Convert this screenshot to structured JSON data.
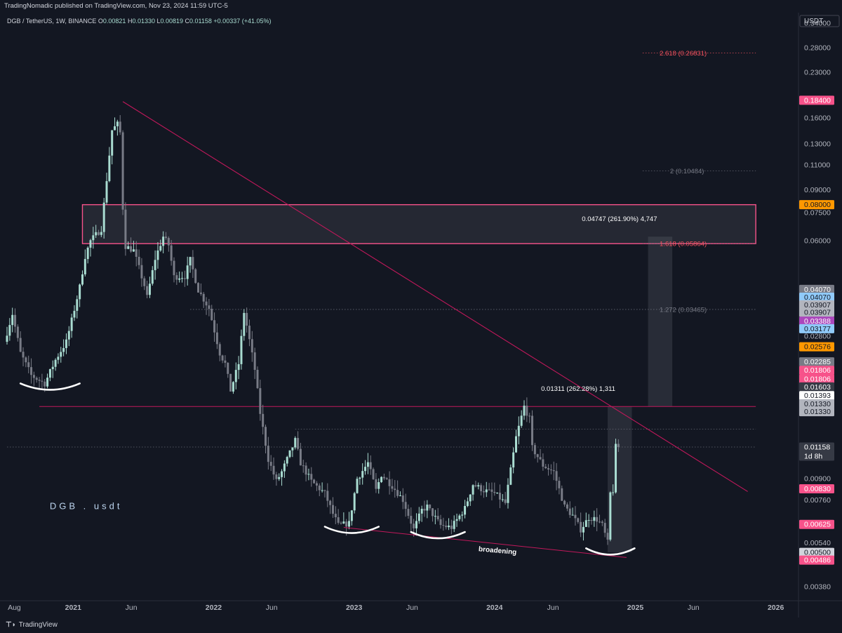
{
  "header": {
    "published": "TradingNomadic published on TradingView.com, Nov 23, 2024 11:59 UTC-5",
    "symbol": "DGB / TetherUS, 1W, BINANCE",
    "ohlc": [
      {
        "k": "O",
        "v": "0.00821"
      },
      {
        "k": "H",
        "v": "0.01330"
      },
      {
        "k": "L",
        "v": "0.00819"
      },
      {
        "k": "C",
        "v": "0.01158"
      }
    ],
    "change": "+0.00337 (+41.05%)",
    "currency": "USDT"
  },
  "footer": {
    "brand": "TradingView"
  },
  "colors": {
    "bg": "#131722",
    "up": "#a9dcd1",
    "down": "#787b86",
    "pink": "#f7525f",
    "trend": "#c2185b",
    "grid": "#2a2e39",
    "axis_text": "#b2b5be"
  },
  "chart_data": {
    "type": "candlestick",
    "title": "DGB . usdt",
    "y_scale": "log",
    "ylim": [
      0.0034,
      0.37
    ],
    "x_range": [
      "2020-07-13",
      "2026-03-01"
    ],
    "y_ticks": [
      "0.34000",
      "0.28000",
      "0.23000",
      "0.16000",
      "0.13000",
      "0.11000",
      "0.09000",
      "0.07500",
      "0.06000",
      "0.02800",
      "0.00900",
      "0.00760",
      "0.00540",
      "0.00380"
    ],
    "x_ticks": [
      {
        "label": "Aug",
        "date": "2020-08-01",
        "major": false
      },
      {
        "label": "2021",
        "date": "2021-01-01",
        "major": true
      },
      {
        "label": "Jun",
        "date": "2021-06-01",
        "major": false
      },
      {
        "label": "2022",
        "date": "2022-01-01",
        "major": true
      },
      {
        "label": "Jun",
        "date": "2022-06-01",
        "major": false
      },
      {
        "label": "2023",
        "date": "2023-01-01",
        "major": true
      },
      {
        "label": "Jun",
        "date": "2023-06-01",
        "major": false
      },
      {
        "label": "2024",
        "date": "2024-01-01",
        "major": true
      },
      {
        "label": "Jun",
        "date": "2024-06-01",
        "major": false
      },
      {
        "label": "2025",
        "date": "2025-01-01",
        "major": true
      },
      {
        "label": "Jun",
        "date": "2025-06-01",
        "major": false
      },
      {
        "label": "2026",
        "date": "2026-01-01",
        "major": true
      }
    ],
    "price_path": [
      [
        "2020-07-13",
        0.0268
      ],
      [
        "2020-08-03",
        0.0335
      ],
      [
        "2020-08-24",
        0.0245
      ],
      [
        "2020-09-21",
        0.0205
      ],
      [
        "2020-10-26",
        0.0192
      ],
      [
        "2020-11-23",
        0.0232
      ],
      [
        "2020-12-21",
        0.0268
      ],
      [
        "2021-01-04",
        0.0318
      ],
      [
        "2021-01-25",
        0.0415
      ],
      [
        "2021-02-08",
        0.053
      ],
      [
        "2021-02-22",
        0.06
      ],
      [
        "2021-03-22",
        0.066
      ],
      [
        "2021-04-19",
        0.145
      ],
      [
        "2021-05-03",
        0.152
      ],
      [
        "2021-05-10",
        0.142
      ],
      [
        "2021-05-17",
        0.078
      ],
      [
        "2021-05-24",
        0.0575
      ],
      [
        "2021-06-14",
        0.0555
      ],
      [
        "2021-07-12",
        0.042
      ],
      [
        "2021-07-19",
        0.0382
      ],
      [
        "2021-08-09",
        0.052
      ],
      [
        "2021-08-30",
        0.062
      ],
      [
        "2021-09-13",
        0.058
      ],
      [
        "2021-09-27",
        0.045
      ],
      [
        "2021-10-25",
        0.0452
      ],
      [
        "2021-11-08",
        0.0515
      ],
      [
        "2021-11-29",
        0.0405
      ],
      [
        "2021-12-27",
        0.035
      ],
      [
        "2022-01-24",
        0.0245
      ],
      [
        "2022-02-07",
        0.0225
      ],
      [
        "2022-02-21",
        0.0182
      ],
      [
        "2022-03-14",
        0.0225
      ],
      [
        "2022-03-28",
        0.034
      ],
      [
        "2022-04-04",
        0.0305
      ],
      [
        "2022-04-25",
        0.0215
      ],
      [
        "2022-05-09",
        0.0152
      ],
      [
        "2022-05-30",
        0.0105
      ],
      [
        "2022-06-20",
        0.0088
      ],
      [
        "2022-07-04",
        0.0095
      ],
      [
        "2022-08-08",
        0.0122
      ],
      [
        "2022-08-22",
        0.0102
      ],
      [
        "2022-09-19",
        0.0088
      ],
      [
        "2022-10-24",
        0.008
      ],
      [
        "2022-11-14",
        0.0068
      ],
      [
        "2022-11-28",
        0.0062
      ],
      [
        "2022-12-26",
        0.0063
      ],
      [
        "2023-01-16",
        0.009
      ],
      [
        "2023-02-13",
        0.0102
      ],
      [
        "2023-03-06",
        0.0082
      ],
      [
        "2023-03-20",
        0.0093
      ],
      [
        "2023-04-17",
        0.0085
      ],
      [
        "2023-05-15",
        0.0076
      ],
      [
        "2023-06-12",
        0.006
      ],
      [
        "2023-07-03",
        0.007
      ],
      [
        "2023-07-17",
        0.0072
      ],
      [
        "2023-08-21",
        0.0062
      ],
      [
        "2023-09-18",
        0.0061
      ],
      [
        "2023-10-23",
        0.0071
      ],
      [
        "2023-11-13",
        0.0086
      ],
      [
        "2023-12-11",
        0.0082
      ],
      [
        "2024-01-08",
        0.008
      ],
      [
        "2024-02-05",
        0.0074
      ],
      [
        "2024-03-04",
        0.0125
      ],
      [
        "2024-03-25",
        0.016
      ],
      [
        "2024-04-08",
        0.0145
      ],
      [
        "2024-04-15",
        0.0115
      ],
      [
        "2024-05-13",
        0.01
      ],
      [
        "2024-06-10",
        0.0095
      ],
      [
        "2024-07-08",
        0.0072
      ],
      [
        "2024-07-29",
        0.0067
      ],
      [
        "2024-08-19",
        0.006
      ],
      [
        "2024-09-09",
        0.0066
      ],
      [
        "2024-09-30",
        0.0065
      ],
      [
        "2024-10-14",
        0.0062
      ],
      [
        "2024-10-28",
        0.0054
      ],
      [
        "2024-11-04",
        0.008
      ],
      [
        "2024-11-11",
        0.0082
      ],
      [
        "2024-11-18",
        0.01158
      ]
    ],
    "volatility": 0.085,
    "overlays": {
      "resistance_box": {
        "from": "2021-01-25",
        "to": "2025-11-10",
        "top": 0.08,
        "bottom": 0.05864
      },
      "trendline": {
        "p1": [
          "2021-05-10",
          0.182
        ],
        "p2": [
          "2025-10-20",
          0.00812
        ]
      },
      "support_line": {
        "from": "2020-10-05",
        "to": "2025-11-10",
        "price": 0.016
      },
      "broadening_line": {
        "p1": [
          "2022-12-05",
          0.0061
        ],
        "p2": [
          "2024-12-09",
          0.0048
        ]
      },
      "dotted_levels": [
        {
          "from": "2025-01-20",
          "to": "2025-11-10",
          "price": 0.2683,
          "color": "pink"
        },
        {
          "from": "2025-01-20",
          "to": "2025-11-10",
          "price": 0.1048,
          "color": "gray"
        },
        {
          "from": "2025-01-20",
          "to": "2025-11-10",
          "price": 0.05864,
          "color": "gray"
        },
        {
          "from": "2021-11-01",
          "to": "2025-11-10",
          "price": 0.0347,
          "color": "gray"
        },
        {
          "from": "2022-08-01",
          "to": "2025-11-10",
          "price": 0.01335,
          "color": "gray"
        },
        {
          "from": "2020-07-13",
          "to": "2025-11-10",
          "price": 0.01158,
          "color": "gray"
        }
      ],
      "measure_boxes": [
        {
          "from": "2024-10-21",
          "to": "2024-12-23",
          "low": 0.005,
          "high": 0.016
        },
        {
          "from": "2025-02-03",
          "to": "2025-04-07",
          "low": 0.016,
          "high": 0.062
        }
      ],
      "smiles": [
        {
          "from": "2020-08-17",
          "to": "2021-01-18",
          "price": 0.0188
        },
        {
          "from": "2022-10-17",
          "to": "2023-03-06",
          "price": 0.006
        },
        {
          "from": "2023-05-29",
          "to": "2023-10-16",
          "price": 0.00575
        },
        {
          "from": "2024-08-26",
          "to": "2024-12-30",
          "price": 0.00505
        }
      ]
    },
    "labels": [
      {
        "text": "2.618 (0.26831)",
        "date": "2025-03-05",
        "price": 0.2683,
        "color": "#f7525f"
      },
      {
        "text": "2 (0.10484)",
        "date": "2025-04-01",
        "price": 0.1048,
        "color": "#787b86"
      },
      {
        "text": "1.618 (0.05864)",
        "date": "2025-03-05",
        "price": 0.05864,
        "color": "#f7525f"
      },
      {
        "text": "1.272 (0.03465)",
        "date": "2025-03-05",
        "price": 0.0347,
        "color": "#787b86"
      },
      {
        "text": "0.04747 (261.90%) 4,747",
        "date": "2024-08-15",
        "price": 0.0715,
        "color": "#ffffff"
      },
      {
        "text": "0.01311 (262.28%) 1,311",
        "date": "2024-05-01",
        "price": 0.0185,
        "color": "#ffffff"
      }
    ],
    "broadening_label": {
      "text": "broadening",
      "date": "2023-11-20",
      "price": 0.00505
    },
    "watermark": {
      "text": "DGB . usdt",
      "date": "2020-11-01",
      "price": 0.00705
    },
    "price_tags": [
      {
        "text": "0.18400",
        "price": 0.184,
        "bg": "#f7528a",
        "fg": "#ffffff"
      },
      {
        "text": "0.08000",
        "price": 0.08,
        "bg": "#ff9800",
        "fg": "#131722"
      },
      {
        "text": "0.04070",
        "price": 0.0407,
        "bg": "#787b86",
        "fg": "#ffffff"
      },
      {
        "text": "0.04070",
        "price": 0.03825,
        "bg": "#90caf9",
        "fg": "#131722"
      },
      {
        "text": "0.03907",
        "price": 0.036,
        "bg": "#b2b5be",
        "fg": "#131722"
      },
      {
        "text": "0.03907",
        "price": 0.0339,
        "bg": "#b2b5be",
        "fg": "#131722"
      },
      {
        "text": "0.03388",
        "price": 0.0316,
        "bg": "#ab47bc",
        "fg": "#ffffff"
      },
      {
        "text": "0.03177",
        "price": 0.02975,
        "bg": "#90caf9",
        "fg": "#131722"
      },
      {
        "text": "0.02576",
        "price": 0.02576,
        "bg": "#ff9800",
        "fg": "#131722"
      },
      {
        "text": "0.02285",
        "price": 0.02285,
        "bg": "#787b86",
        "fg": "#ffffff"
      },
      {
        "text": "0.01806",
        "price": 0.02135,
        "bg": "#f7528a",
        "fg": "#ffffff"
      },
      {
        "text": "0.01806",
        "price": 0.01995,
        "bg": "#f7528a",
        "fg": "#ffffff"
      },
      {
        "text": "0.01603",
        "price": 0.0187,
        "bg": "#363a45",
        "fg": "#ffffff"
      },
      {
        "text": "0.01393",
        "price": 0.01745,
        "bg": "#ffffff",
        "fg": "#131722"
      },
      {
        "text": "0.01330",
        "price": 0.01635,
        "bg": "#b2b5be",
        "fg": "#131722"
      },
      {
        "text": "0.01330",
        "price": 0.01535,
        "bg": "#b2b5be",
        "fg": "#131722"
      },
      {
        "text": "0.01158",
        "price": 0.01158,
        "bg": "#363a45",
        "fg": "#ffffff",
        "sub": "1d 8h"
      },
      {
        "text": "0.00830",
        "price": 0.0083,
        "bg": "#f7528a",
        "fg": "#ffffff"
      },
      {
        "text": "0.00625",
        "price": 0.00625,
        "bg": "#f7528a",
        "fg": "#ffffff"
      },
      {
        "text": "0.00500",
        "price": 0.005,
        "bg": "#d1d4dc",
        "fg": "#131722"
      },
      {
        "text": "0.00486",
        "price": 0.0047,
        "bg": "#f7528a",
        "fg": "#ffffff"
      }
    ]
  }
}
